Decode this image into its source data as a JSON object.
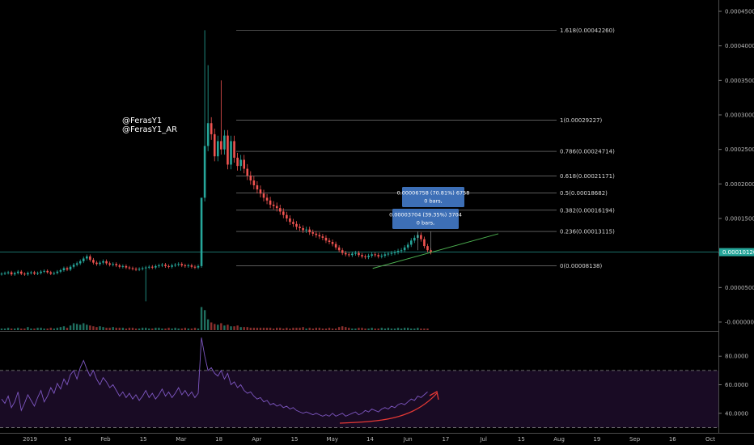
{
  "watermark": {
    "line1": "@FerasY1",
    "line2": "@FerasY1_AR"
  },
  "chart_data": [
    {
      "type": "candlestick",
      "title": "",
      "price_axis": {
        "ticks": [
          "0.00045000",
          "0.00040000",
          "0.00035000",
          "0.00030000",
          "0.00025000",
          "0.00020000",
          "0.00015000",
          "0.00010000",
          "0.00005000",
          "-0.00000000"
        ],
        "ylim": [
          0,
          0.00045
        ]
      },
      "time_axis": {
        "ticks": [
          "2019",
          "14",
          "Feb",
          "15",
          "Mar",
          "18",
          "Apr",
          "15",
          "May",
          "14",
          "Jun",
          "17",
          "Jul",
          "15",
          "Aug",
          "19",
          "Sep",
          "16",
          "Oct"
        ]
      },
      "current_price": {
        "label": "0.00010120",
        "value": 0.0001012,
        "color": "#26a69a"
      },
      "colors": {
        "up": "#26a69a",
        "down": "#ef5350"
      },
      "closes": [
        7e-05,
        7.1e-05,
        7.2e-05,
        6.9e-05,
        7.1e-05,
        7.3e-05,
        7e-05,
        6.9e-05,
        7.1e-05,
        7.2e-05,
        7e-05,
        7.1e-05,
        7.3e-05,
        7.4e-05,
        7.2e-05,
        7e-05,
        7.1e-05,
        7.3e-05,
        7.5e-05,
        7.8e-05,
        7.6e-05,
        8e-05,
        8.3e-05,
        8.5e-05,
        8.8e-05,
        9.2e-05,
        9.5e-05,
        9e-05,
        8.6e-05,
        8.4e-05,
        8.6e-05,
        8.8e-05,
        8.5e-05,
        8.3e-05,
        8.4e-05,
        8.2e-05,
        8e-05,
        8.1e-05,
        7.9e-05,
        7.8e-05,
        7.7e-05,
        7.6e-05,
        7.7e-05,
        7.8e-05,
        7.9e-05,
        8e-05,
        7.9e-05,
        8.1e-05,
        8.2e-05,
        8.3e-05,
        8.1e-05,
        8e-05,
        8.2e-05,
        8.3e-05,
        8.4e-05,
        8.2e-05,
        8.1e-05,
        8.2e-05,
        8e-05,
        7.9e-05,
        8.1e-05,
        0.00018,
        0.000255,
        0.000288,
        0.000272,
        0.00024,
        0.000262,
        0.00025,
        0.00027,
        0.000228,
        0.000262,
        0.000238,
        0.000226,
        0.000235,
        0.000222,
        0.000212,
        0.000205,
        0.000198,
        0.000192,
        0.000186,
        0.00018,
        0.000176,
        0.00017,
        0.000168,
        0.000165,
        0.00016,
        0.000155,
        0.00015,
        0.000145,
        0.000142,
        0.000138,
        0.000136,
        0.000133,
        0.000134,
        0.00013,
        0.000128,
        0.000126,
        0.000124,
        0.000122,
        0.000118,
        0.000116,
        0.000113,
        0.000108,
        0.000104,
        0.0001,
        9.8e-05,
        9.7e-05,
        9.9e-05,
        0.0001,
        9.7e-05,
        9.5e-05,
        9.4e-05,
        9.6e-05,
        9.8e-05,
        9.7e-05,
        9.5e-05,
        9.6e-05,
        9.8e-05,
        9.9e-05,
        0.0001,
        0.000101,
        0.000103,
        0.000104,
        0.000108,
        0.000112,
        0.000118,
        0.000122,
        0.000126,
        0.00012,
        0.00011,
        0.000104,
        0.000101
      ],
      "volume": [
        2,
        2,
        3,
        2,
        2,
        3,
        2,
        2,
        4,
        2,
        2,
        3,
        3,
        2,
        2,
        3,
        2,
        3,
        4,
        5,
        3,
        6,
        9,
        8,
        7,
        9,
        7,
        6,
        5,
        4,
        5,
        4,
        3,
        3,
        4,
        3,
        3,
        3,
        2,
        3,
        3,
        2,
        2,
        3,
        3,
        2,
        2,
        3,
        3,
        2,
        2,
        3,
        2,
        3,
        2,
        2,
        3,
        2,
        2,
        3,
        2,
        30,
        26,
        14,
        10,
        8,
        7,
        9,
        6,
        7,
        5,
        5,
        6,
        4,
        4,
        4,
        3,
        3,
        3,
        3,
        3,
        3,
        3,
        2,
        3,
        3,
        2,
        3,
        2,
        3,
        3,
        3,
        4,
        2,
        3,
        2,
        3,
        3,
        2,
        2,
        3,
        2,
        2,
        4,
        5,
        4,
        3,
        2,
        2,
        3,
        3,
        2,
        2,
        3,
        2,
        2,
        3,
        2,
        3,
        2,
        2,
        3,
        2,
        3,
        3,
        2,
        2,
        3,
        2,
        2,
        2
      ],
      "fibonacci": {
        "levels": [
          {
            "ratio": "1.618",
            "price": "0.00042260",
            "value": 0.0004226
          },
          {
            "ratio": "1",
            "price": "0.00029227",
            "value": 0.00029227
          },
          {
            "ratio": "0.786",
            "price": "0.00024714",
            "value": 0.00024714
          },
          {
            "ratio": "0.618",
            "price": "0.00021171",
            "value": 0.00021171
          },
          {
            "ratio": "0.5",
            "price": "0.00018682",
            "value": 0.00018682
          },
          {
            "ratio": "0.382",
            "price": "0.00016194",
            "value": 0.00016194
          },
          {
            "ratio": "0.236",
            "price": "0.00013115",
            "value": 0.00013115
          },
          {
            "ratio": "0",
            "price": "0.00008138",
            "value": 8.138e-05
          }
        ]
      },
      "measure_tooltips": [
        {
          "line1": "0.00006758 (70.81%) 6758",
          "line2": "0 bars,"
        },
        {
          "line1": "0.00003704 (39.35%) 3704",
          "line2": "0 bars,"
        }
      ],
      "trendline_color": "#4caf50"
    },
    {
      "type": "line",
      "title": "",
      "y_axis": {
        "ticks": [
          "80.0000",
          "60.0000",
          "40.0000"
        ],
        "ylim": [
          28,
          96
        ]
      },
      "band": {
        "upper": 70,
        "lower": 30
      },
      "line_color": "#7e57c2",
      "values": [
        50,
        47,
        52,
        44,
        48,
        55,
        42,
        47,
        53,
        49,
        45,
        51,
        56,
        48,
        52,
        58,
        54,
        61,
        57,
        64,
        60,
        67,
        70,
        64,
        72,
        77,
        71,
        66,
        70,
        64,
        60,
        65,
        62,
        58,
        60,
        56,
        52,
        55,
        51,
        54,
        50,
        53,
        49,
        52,
        56,
        51,
        54,
        50,
        53,
        57,
        52,
        55,
        51,
        54,
        58,
        53,
        56,
        52,
        55,
        51,
        54,
        93,
        80,
        70,
        72,
        68,
        66,
        70,
        64,
        68,
        60,
        62,
        58,
        60,
        56,
        54,
        55,
        52,
        50,
        51,
        48,
        49,
        46,
        47,
        45,
        46,
        44,
        45,
        43,
        44,
        42,
        41,
        40,
        41,
        40,
        39,
        40,
        39,
        38,
        39,
        38,
        40,
        38,
        39,
        40,
        38,
        39,
        40,
        41,
        39,
        40,
        42,
        41,
        43,
        42,
        41,
        43,
        44,
        43,
        45,
        44,
        46,
        47,
        46,
        48,
        50,
        49,
        52,
        51,
        53,
        55
      ],
      "arrow_color": "#e53935"
    }
  ]
}
